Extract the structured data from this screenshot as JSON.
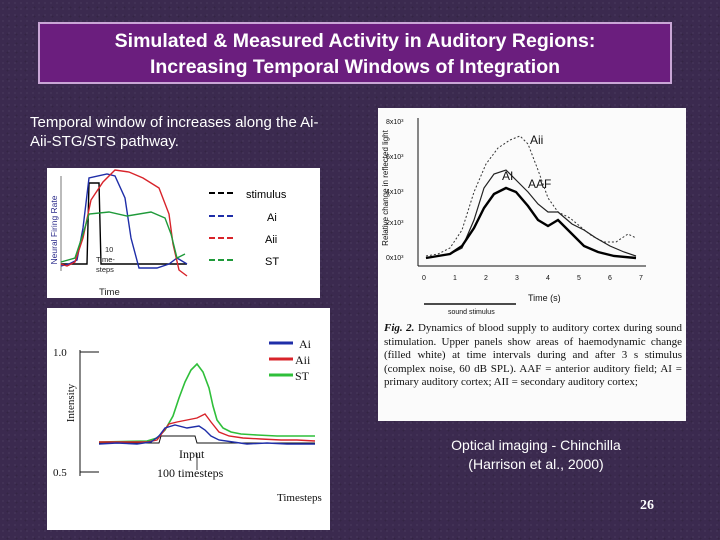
{
  "title": {
    "line1": "Simulated & Measured Activity in Auditory Regions:",
    "line2": "Increasing Temporal Windows of Integration"
  },
  "subtitle": "Temporal window of increases along the Ai-Aii-STG/STS pathway.",
  "sim1": {
    "ylabel": "Neural Firing Rate",
    "xlabel": "Time",
    "annotation_line1": "10",
    "annotation_line2": "Time-",
    "annotation_line3": "steps",
    "legend": [
      {
        "label": "stimulus",
        "color": "#000000"
      },
      {
        "label": "Ai",
        "color": "#1f2ea8"
      },
      {
        "label": "Aii",
        "color": "#d8232a"
      },
      {
        "label": "ST",
        "color": "#1f9a3a"
      }
    ]
  },
  "sim2": {
    "ylabel": "Intensity",
    "xlabel": "Timesteps",
    "ytick_high": "1.0",
    "ytick_low": "0.5",
    "input_label": "Input",
    "timesteps_label": "100 timesteps",
    "legend": [
      {
        "label": "Ai",
        "color": "#1f2ea8"
      },
      {
        "label": "Aii",
        "color": "#d8232a"
      },
      {
        "label": "ST",
        "color": "#2fbf3a"
      }
    ]
  },
  "figure": {
    "ylabel": "Relative change in reflected light",
    "xlabel": "Time (s)",
    "x_ticks": [
      "0",
      "1",
      "2",
      "3",
      "4",
      "5",
      "6",
      "7"
    ],
    "y_ticks": [
      "8x10³",
      "6x10³",
      "4x10³",
      "2x10³",
      "0x10³"
    ],
    "series_labels": [
      "Aii",
      "AI",
      "AAF"
    ],
    "stimulus_label": "sound stimulus",
    "caption_lead": "Fig. 2.",
    "caption_text": "Dynamics of blood supply to auditory cortex during sound stimulation. Upper panels show areas of haemodynamic change (filled white) at time intervals during and after 3 s stimulus (complex noise, 60 dB SPL). AAF = anterior auditory field; AI = primary auditory cortex; AII = secondary auditory cortex;"
  },
  "caption": {
    "line1": "Optical imaging - Chinchilla",
    "line2": "(Harrison et al., 2000)"
  },
  "slide_number": "26"
}
